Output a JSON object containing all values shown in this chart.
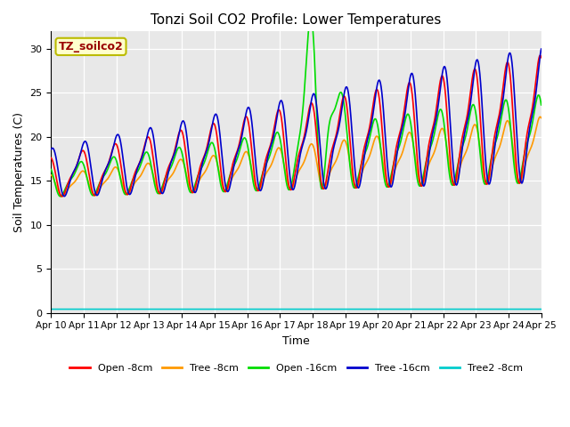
{
  "title": "Tonzi Soil CO2 Profile: Lower Temperatures",
  "xlabel": "Time",
  "ylabel": "Soil Temperatures (C)",
  "ylim": [
    0,
    32
  ],
  "yticks": [
    0,
    5,
    10,
    15,
    20,
    25,
    30
  ],
  "series_colors": {
    "open_8cm": "#ff0000",
    "tree_8cm": "#ff9900",
    "open_16cm": "#00dd00",
    "tree_16cm": "#0000cc",
    "tree2_8cm": "#00cccc"
  },
  "legend_labels": [
    "Open -8cm",
    "Tree -8cm",
    "Open -16cm",
    "Tree -16cm",
    "Tree2 -8cm"
  ],
  "annotation_label": "TZ_soilco2",
  "annotation_bg": "#ffffcc",
  "annotation_border": "#bbbb00",
  "background_color": "#e8e8e8",
  "tree2_8cm_value": 0.4
}
